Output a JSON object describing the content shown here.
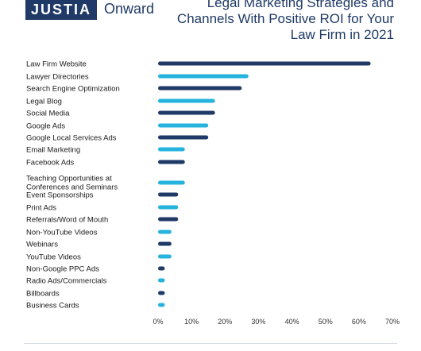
{
  "brand": {
    "logo": "JUSTIA",
    "sub": "Onward"
  },
  "chart_data": {
    "type": "bar",
    "orientation": "horizontal",
    "title_lines": [
      "Legal Marketing Strategies and",
      "Channels With Positive ROI for Your",
      "Law Firm in 2021"
    ],
    "categories": [
      [
        "Law Firm Website"
      ],
      [
        "Lawyer Directories"
      ],
      [
        "Search Engine Optimization"
      ],
      [
        "Legal Blog"
      ],
      [
        "Social Media"
      ],
      [
        "Google Ads"
      ],
      [
        "Google Local Services Ads"
      ],
      [
        "Email Marketing"
      ],
      [
        "Facebook Ads"
      ],
      [
        "Teaching Opportunities at",
        "Conferences and Seminars"
      ],
      [
        "Event Sponsorships"
      ],
      [
        "Print Ads"
      ],
      [
        "Referrals/Word of Mouth"
      ],
      [
        "Non-YouTube Videos"
      ],
      [
        "Webinars"
      ],
      [
        "YouTube Videos"
      ],
      [
        "Non-Google PPC Ads"
      ],
      [
        "Radio Ads/Commercials"
      ],
      [
        "Billboards"
      ],
      [
        "Business Cards"
      ]
    ],
    "values": [
      63.5,
      27,
      25,
      17,
      17,
      15,
      15,
      8,
      8,
      8,
      6,
      6,
      6,
      4,
      4,
      4,
      2,
      2,
      2,
      2
    ],
    "bar_colors": [
      "#1f3a66",
      "#26b3de",
      "#1f3a66",
      "#26b3de",
      "#1f3a66",
      "#26b3de",
      "#1f3a66",
      "#26b3de",
      "#1f3a66",
      "#26b3de",
      "#1f3a66",
      "#26b3de",
      "#1f3a66",
      "#26b3de",
      "#1f3a66",
      "#26b3de",
      "#1f3a66",
      "#26b3de",
      "#1f3a66",
      "#26b3de"
    ],
    "xlim": [
      0,
      70
    ],
    "xticks": [
      "0%",
      "10%",
      "20%",
      "30%",
      "40%",
      "50%",
      "60%",
      "70%"
    ],
    "grid": false,
    "legend": false
  }
}
